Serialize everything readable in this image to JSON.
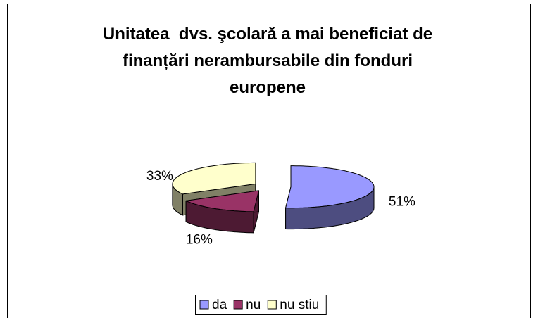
{
  "chart_data": {
    "type": "pie",
    "title": "Unitatea  dvs. şcolară a mai beneficiat de finanțări nerambursabile din fonduri europene",
    "categories": [
      "da",
      "nu",
      "nu stiu"
    ],
    "values": [
      51,
      16,
      33
    ],
    "value_labels": [
      "51%",
      "16%",
      "33%"
    ],
    "colors": [
      "#9999ff",
      "#993366",
      "#ffffcc"
    ],
    "legend": "bottom"
  }
}
